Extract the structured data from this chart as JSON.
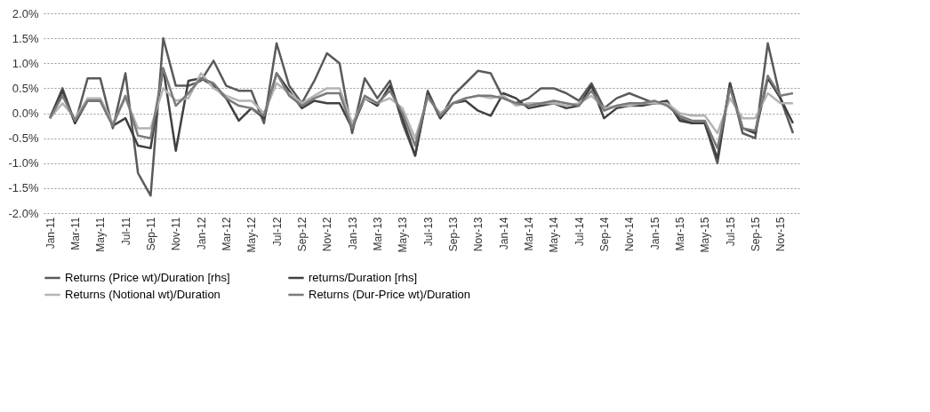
{
  "chart_data": {
    "type": "line",
    "categories": [
      "Jan-11",
      null,
      "Mar-11",
      null,
      "May-11",
      null,
      "Jul-11",
      null,
      "Sep-11",
      null,
      "Nov-11",
      null,
      "Jan-12",
      null,
      "Mar-12",
      null,
      "May-12",
      null,
      "Jul-12",
      null,
      "Sep-12",
      null,
      "Nov-12",
      null,
      "Jan-13",
      null,
      "Mar-13",
      null,
      "May-13",
      null,
      "Jul-13",
      null,
      "Sep-13",
      null,
      "Nov-13",
      null,
      "Jan-14",
      null,
      "Mar-14",
      null,
      "May-14",
      null,
      "Jul-14",
      null,
      "Sep-14",
      null,
      "Nov-14",
      null,
      "Jan-15",
      null,
      "Mar-15",
      null,
      "May-15",
      null,
      "Jul-15",
      null,
      "Sep-15",
      null,
      "Nov-15",
      null
    ],
    "series": [
      {
        "name": "Returns (Price wt)/Duration [rhs]",
        "color": "#5a5a5a",
        "values": [
          -0.1,
          0.5,
          -0.2,
          0.7,
          0.7,
          -0.3,
          0.8,
          -1.2,
          -1.65,
          1.5,
          0.55,
          0.55,
          0.65,
          1.05,
          0.55,
          0.45,
          0.45,
          -0.2,
          1.4,
          0.55,
          0.2,
          0.65,
          1.2,
          1.0,
          -0.4,
          0.7,
          0.3,
          0.65,
          -0.2,
          -0.85,
          0.45,
          -0.1,
          0.35,
          0.6,
          0.85,
          0.8,
          0.3,
          0.2,
          0.3,
          0.5,
          0.5,
          0.4,
          0.25,
          0.6,
          0.1,
          0.3,
          0.4,
          0.3,
          0.2,
          0.2,
          -0.1,
          -0.2,
          -0.2,
          -1.0,
          0.6,
          -0.4,
          -0.5,
          1.4,
          0.3,
          -0.4
        ]
      },
      {
        "name": "returns/Duration [rhs]",
        "color": "#404040",
        "values": [
          -0.1,
          0.45,
          -0.2,
          0.25,
          0.25,
          -0.25,
          -0.1,
          -0.65,
          -0.7,
          0.9,
          -0.75,
          0.65,
          0.7,
          0.55,
          0.3,
          -0.15,
          0.1,
          -0.1,
          0.8,
          0.45,
          0.1,
          0.25,
          0.2,
          0.2,
          -0.3,
          0.3,
          0.15,
          0.55,
          -0.1,
          -0.85,
          0.4,
          -0.1,
          0.2,
          0.25,
          0.05,
          -0.05,
          0.4,
          0.3,
          0.1,
          0.15,
          0.2,
          0.1,
          0.15,
          0.55,
          -0.1,
          0.1,
          0.15,
          0.15,
          0.2,
          0.25,
          -0.15,
          -0.2,
          -0.2,
          -0.9,
          0.6,
          -0.3,
          -0.4,
          0.7,
          0.3,
          -0.2
        ]
      },
      {
        "name": "Returns (Notional wt)/Duration",
        "color": "#b4b4b4",
        "values": [
          -0.1,
          0.2,
          -0.1,
          0.3,
          0.3,
          -0.2,
          0.3,
          -0.3,
          -0.3,
          0.5,
          0.25,
          0.3,
          0.8,
          0.5,
          0.35,
          0.25,
          0.25,
          0.0,
          0.6,
          0.4,
          0.2,
          0.35,
          0.5,
          0.5,
          -0.2,
          0.3,
          0.2,
          0.3,
          0.1,
          -0.5,
          0.3,
          0.0,
          0.2,
          0.3,
          0.35,
          0.3,
          0.35,
          0.15,
          0.2,
          0.2,
          0.2,
          0.15,
          0.2,
          0.35,
          0.1,
          0.15,
          0.15,
          0.2,
          0.2,
          0.2,
          0.0,
          -0.05,
          -0.05,
          -0.4,
          0.3,
          -0.1,
          -0.1,
          0.4,
          0.2,
          0.2
        ]
      },
      {
        "name": "Returns (Dur-Price wt)/Duration",
        "color": "#7a7a7a",
        "values": [
          -0.1,
          0.35,
          -0.15,
          0.25,
          0.25,
          -0.25,
          0.35,
          -0.45,
          -0.5,
          0.9,
          0.15,
          0.4,
          0.7,
          0.6,
          0.3,
          0.15,
          0.1,
          -0.05,
          0.8,
          0.35,
          0.15,
          0.3,
          0.4,
          0.4,
          -0.3,
          0.35,
          0.2,
          0.45,
          0.0,
          -0.65,
          0.35,
          -0.05,
          0.2,
          0.3,
          0.35,
          0.35,
          0.3,
          0.2,
          0.15,
          0.2,
          0.25,
          0.2,
          0.15,
          0.45,
          0.05,
          0.15,
          0.2,
          0.2,
          0.25,
          0.15,
          -0.05,
          -0.15,
          -0.15,
          -0.7,
          0.5,
          -0.3,
          -0.35,
          0.75,
          0.35,
          0.4
        ]
      }
    ],
    "ylim": [
      -2,
      2
    ],
    "yticks": [
      {
        "value": -2,
        "label": "-2.0%"
      },
      {
        "value": -1.5,
        "label": "-1.5%"
      },
      {
        "value": -1,
        "label": "-1.0%"
      },
      {
        "value": -0.5,
        "label": "-0.5%"
      },
      {
        "value": 0,
        "label": "0.0%"
      },
      {
        "value": 0.5,
        "label": "0.5%"
      },
      {
        "value": 1,
        "label": "1.0%"
      },
      {
        "value": 1.5,
        "label": "1.5%"
      },
      {
        "value": 2,
        "label": "2.0%"
      }
    ],
    "grid": "y",
    "legend": "bottom",
    "line_style": "solid"
  }
}
